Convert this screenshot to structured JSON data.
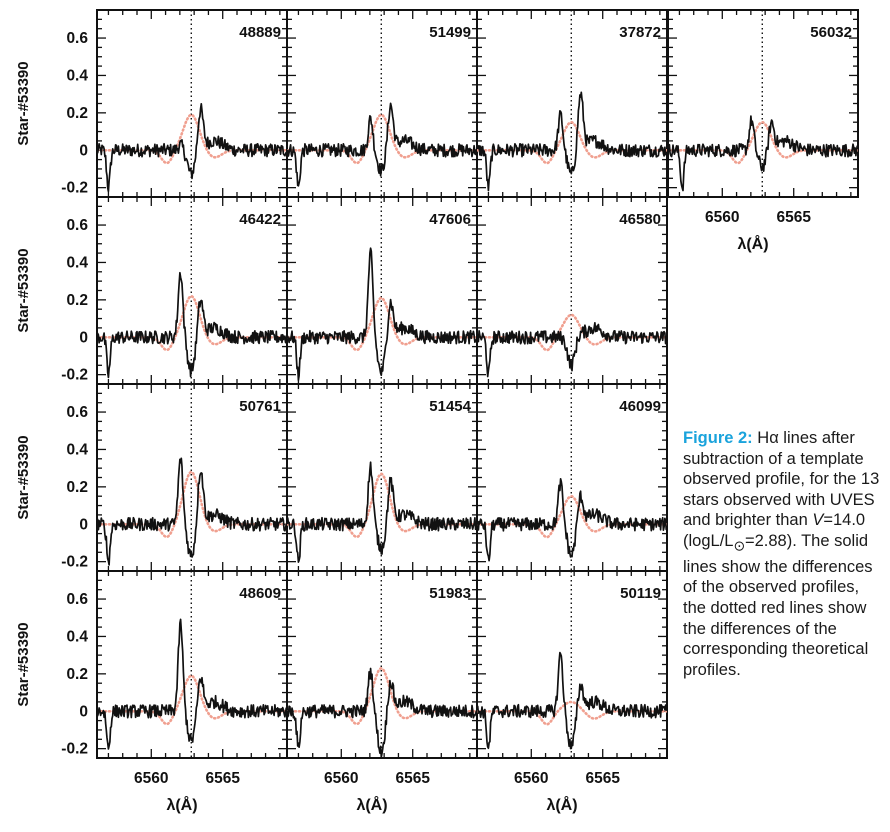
{
  "chart_data": {
    "type": "line",
    "ylabel": "Star-#53390",
    "xlabel": "λ(Å)",
    "xlim": [
      6556.2,
      6569.5
    ],
    "ylim": [
      -0.25,
      0.75
    ],
    "xticks": [
      6560,
      6565
    ],
    "xtick_labels": [
      "6560",
      "6565"
    ],
    "yticks": [
      -0.2,
      0,
      0.2,
      0.4,
      0.6
    ],
    "ytick_labels": [
      "-0.2",
      "0",
      "0.2",
      "0.4",
      "0.6"
    ],
    "reference_line_x": 6562.8,
    "series_styles": {
      "observed": {
        "color": "#111111",
        "style": "solid"
      },
      "theoretical": {
        "color": "#f0a090",
        "style": "dotted"
      }
    },
    "panels": [
      {
        "label": "48889",
        "row": 0,
        "col": 0,
        "peak_blue": 0.03,
        "peak_red": 0.21,
        "dip": -0.05,
        "theo_peak": 0.19
      },
      {
        "label": "51499",
        "row": 0,
        "col": 1,
        "peak_blue": 0.17,
        "peak_red": 0.23,
        "dip": -0.03,
        "theo_peak": 0.19
      },
      {
        "label": "37872",
        "row": 0,
        "col": 2,
        "peak_blue": 0.19,
        "peak_red": 0.29,
        "dip": -0.05,
        "theo_peak": 0.15
      },
      {
        "label": "56032",
        "row": 0,
        "col": 3,
        "peak_blue": 0.16,
        "peak_red": 0.14,
        "dip": -0.01,
        "theo_peak": 0.15
      },
      {
        "label": "46422",
        "row": 1,
        "col": 0,
        "peak_blue": 0.35,
        "peak_red": 0.19,
        "dip": -0.1,
        "theo_peak": 0.22
      },
      {
        "label": "47606",
        "row": 1,
        "col": 1,
        "peak_blue": 0.45,
        "peak_red": 0.18,
        "dip": -0.11,
        "theo_peak": 0.21
      },
      {
        "label": "46580",
        "row": 1,
        "col": 2,
        "peak_blue": 0.0,
        "peak_red": 0.01,
        "dip": -0.07,
        "theo_peak": 0.12
      },
      {
        "label": "50761",
        "row": 2,
        "col": 0,
        "peak_blue": 0.35,
        "peak_red": 0.29,
        "dip": -0.09,
        "theo_peak": 0.28
      },
      {
        "label": "51454",
        "row": 2,
        "col": 1,
        "peak_blue": 0.31,
        "peak_red": 0.22,
        "dip": -0.05,
        "theo_peak": 0.27
      },
      {
        "label": "46099",
        "row": 2,
        "col": 2,
        "peak_blue": 0.22,
        "peak_red": 0.14,
        "dip": -0.09,
        "theo_peak": 0.15
      },
      {
        "label": "48609",
        "row": 3,
        "col": 0,
        "peak_blue": 0.47,
        "peak_red": 0.17,
        "dip": -0.08,
        "theo_peak": 0.19
      },
      {
        "label": "51983",
        "row": 3,
        "col": 1,
        "peak_blue": 0.22,
        "peak_red": 0.15,
        "dip": -0.14,
        "theo_peak": 0.23
      },
      {
        "label": "50119",
        "row": 3,
        "col": 2,
        "peak_blue": 0.31,
        "peak_red": 0.13,
        "dip": -0.11,
        "theo_peak": 0.05
      }
    ]
  },
  "caption": {
    "label": "Figure 2:",
    "part1": " Hα lines after subtraction of a template observed profile, for the 13 stars observed with UVES and brighter than ",
    "v": "V",
    "part2": "=14.0 (logL/L",
    "sun_sub": "⊙",
    "part3": "=2.88). The solid lines show the differences of the observed profiles, the dotted red lines show the differences of the corresponding theoretical profiles."
  }
}
